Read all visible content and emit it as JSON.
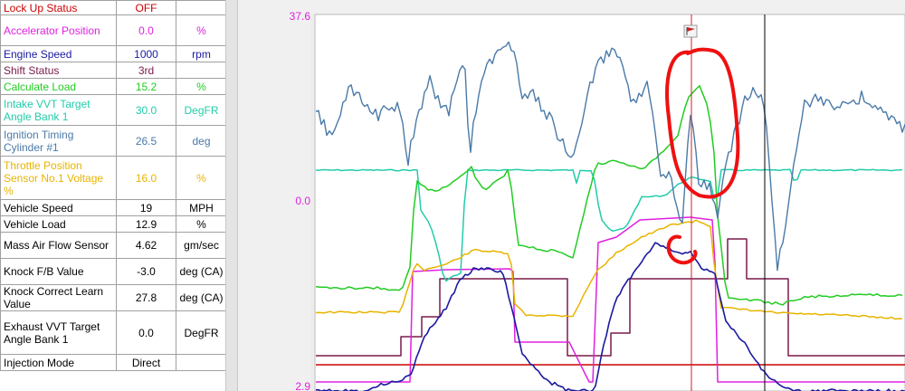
{
  "window_title": "",
  "parameters": [
    {
      "name": "Lock Up Status",
      "value": "OFF",
      "unit": "",
      "color": "#cc0000"
    },
    {
      "name": "Accelerator Position",
      "value": "0.0",
      "unit": "%",
      "color": "#e020e0"
    },
    {
      "name": "Engine Speed",
      "value": "1000",
      "unit": "rpm",
      "color": "#1a1aa0"
    },
    {
      "name": "Shift Status",
      "value": "3rd",
      "unit": "",
      "color": "#7a1a4a"
    },
    {
      "name": "Calculate Load",
      "value": "15.2",
      "unit": "%",
      "color": "#22cc22"
    },
    {
      "name": "Intake VVT Target Angle Bank 1",
      "value": "30.0",
      "unit": "DegFR",
      "color": "#22ccaa"
    },
    {
      "name": "Ignition Timing Cylinder #1",
      "value": "26.5",
      "unit": "deg",
      "color": "#4a7aa8"
    },
    {
      "name": "Throttle Position Sensor No.1 Voltage %",
      "value": "16.0",
      "unit": "%",
      "color": "#e8b400"
    },
    {
      "name": "Vehicle Speed",
      "value": "19",
      "unit": "MPH",
      "color": "#000000"
    },
    {
      "name": "Vehicle Load",
      "value": "12.9",
      "unit": "%",
      "color": "#000000"
    },
    {
      "name": "Mass Air Flow Sensor",
      "value": "4.62",
      "unit": "gm/sec",
      "color": "#000000"
    },
    {
      "name": "Knock F/B Value",
      "value": "-3.0",
      "unit": "deg (CA)",
      "color": "#000000"
    },
    {
      "name": "Knock Correct Learn Value",
      "value": "27.8",
      "unit": "deg (CA)",
      "color": "#000000"
    },
    {
      "name": "Exhaust VVT Target Angle Bank 1",
      "value": "0.0",
      "unit": "DegFR",
      "color": "#000000"
    },
    {
      "name": "Injection Mode",
      "value": "Direct",
      "unit": "",
      "color": "#000000"
    }
  ],
  "chart": {
    "y_max_label": "37.6",
    "y_mid_label": "0.0",
    "y_min_label": "2.9",
    "flag_icon": "flag-icon",
    "annotation_color": "#ee1111",
    "cursor_color": "#cc2222"
  }
}
